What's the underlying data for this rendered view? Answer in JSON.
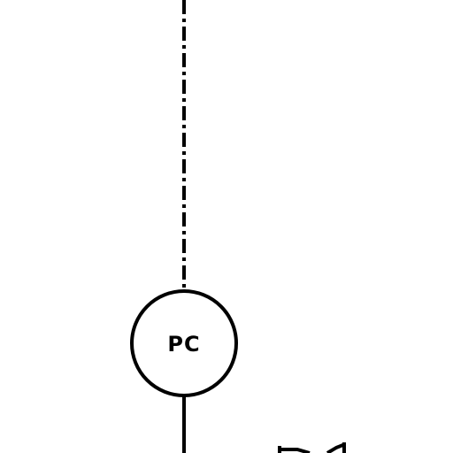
{
  "diagram": {
    "instrument": {
      "tag": "PC",
      "icon": "controller-bubble-icon"
    },
    "signal_line": {
      "icon": "dash-dot-signal-line-icon"
    },
    "process_line": {
      "icon": "process-line-icon"
    },
    "valve": {
      "icon": "valve-icon"
    },
    "colors": {
      "stroke": "#000000",
      "background": "#ffffff"
    }
  }
}
